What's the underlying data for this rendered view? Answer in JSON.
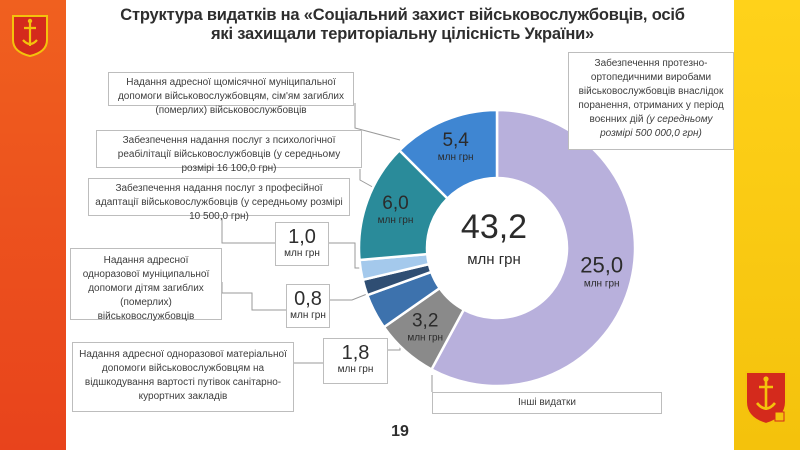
{
  "page": {
    "title_line1": "Структура видатків на «Соціальний захист військовослужбовців, осіб",
    "title_line2": "які захищали територіальну цілісність України»",
    "page_number": "19",
    "colors": {
      "left_band": "#ec4f1e",
      "right_band": "#f8cb12"
    }
  },
  "chart_data": {
    "type": "pie",
    "variant": "donut",
    "total": 43.2,
    "total_label": "43,2",
    "unit": "млн грн",
    "slices": [
      {
        "label": "Забезпечення протезно-ортопедичними виробами військовослужбовців внаслідок поранень, отриманих у період воєнних дій",
        "note": "(у середньому розмірі 500 000,0 грн)",
        "value": 25.0,
        "value_label": "25,0",
        "color": "#b8b0dc"
      },
      {
        "label": "Інші видатки",
        "value": 3.2,
        "value_label": "3,2",
        "color": "#8a8a8a"
      },
      {
        "label": "Надання адресної одноразової матеріальної допомоги військовослужбовцям на відшкодування вартості путівок санітарно-курортних закладів",
        "value": 1.8,
        "value_label": "1,8",
        "color": "#3d72ad"
      },
      {
        "label": "Надання адресної одноразової муніципальної допомоги дітям загиблих (померлих) військовослужбовців",
        "value": 0.8,
        "value_label": "0,8",
        "color": "#2f4e73"
      },
      {
        "label": "Забезпечення надання послуг з професійної адаптації військовослужбовців (у середньому розмірі 10 500,0 грн)",
        "value": 1.0,
        "value_label": "1,0",
        "color": "#a4c9ec"
      },
      {
        "label": "Забезпечення надання послуг з психологічної реабілітації військовослужбовців (у середньому розмірі 16 100,0 грн)",
        "value": 6.0,
        "value_label": "6,0",
        "color": "#2a8b9a"
      },
      {
        "label": "Надання адресної щомісячної муніципальної допомоги військовослужбовцям, сім'ям загиблих (померлих) військовослужбовців",
        "value": 5.4,
        "value_label": "5,4",
        "color": "#3f86d2"
      }
    ]
  },
  "labels": {
    "monthly_aid": "Надання адресної щомісячної муніципальної допомоги військовослужбовцям, сім'ям загиблих (померлих) військовослужбовців",
    "psych_rehab": "Забезпечення надання послуг з психологічної реабілітації військовослужбовців (у середньому розмірі 16 100,0 грн)",
    "prof_adapt": "Забезпечення надання послуг з професійної адаптації військовослужбовців (у середньому розмірі 10 500,0 грн)",
    "children_aid": "Надання адресної одноразової муніципальної допомоги дітям загиблих (померлих) військовослужбовців",
    "sanatorium_line": "Надання адресної одноразової матеріальної допомоги військовослужбовцям на відшкодування вартості путівок санітарно-курортних закладів",
    "prosthetic_main": "Забезпечення протезно-ортопедичними виробами військовослужбовців внаслідок поранення, отриманих у період воєнних дій",
    "prosthetic_note": "(у середньому розмірі 500 000,0 грн)",
    "other": "Інші видатки"
  },
  "callouts": {
    "one": {
      "value": "1,0",
      "unit": "млн грн"
    },
    "zero_eight": {
      "value": "0,8",
      "unit": "млн грн"
    },
    "one_eight": {
      "value": "1,8",
      "unit": "млн грн"
    }
  }
}
